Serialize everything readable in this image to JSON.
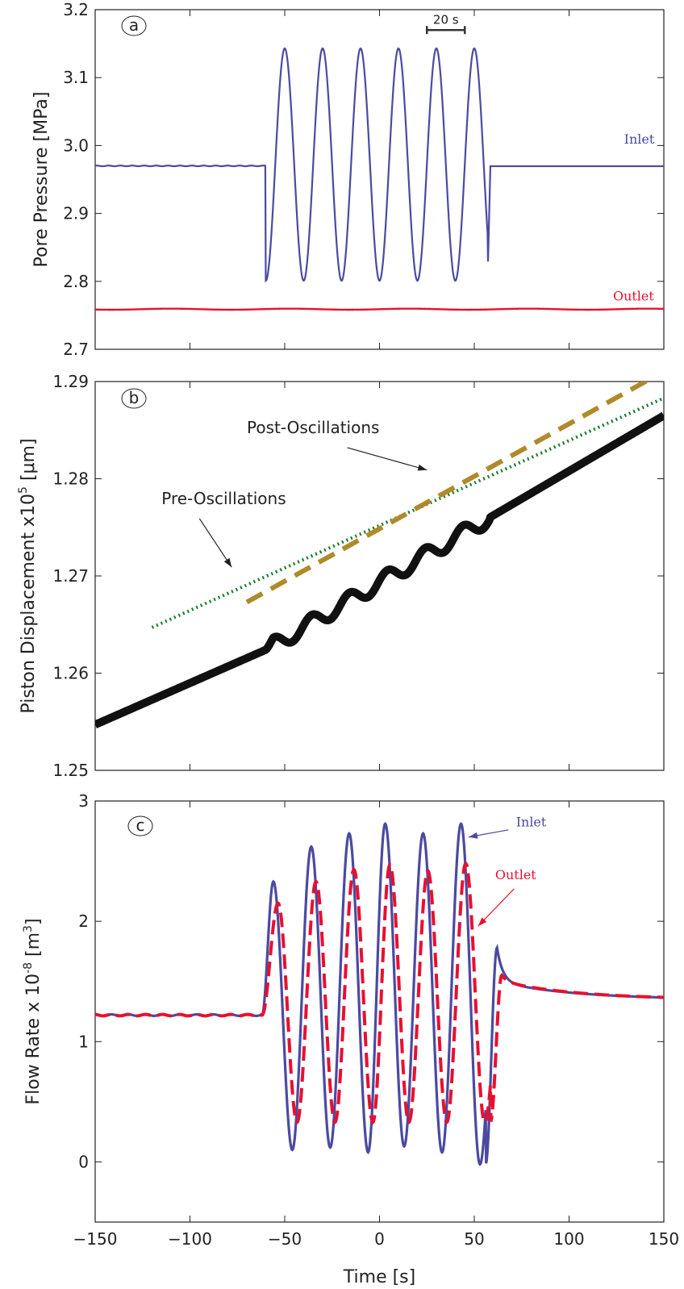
{
  "chart_data": [
    {
      "type": "line",
      "panel_label": "a",
      "ylabel": "Pore  Pressure [MPa]",
      "xlim": [
        -150,
        150
      ],
      "ylim": [
        2.7,
        3.2
      ],
      "xticks": [
        -150,
        -100,
        -50,
        0,
        50,
        100,
        150
      ],
      "yticks": [
        2.7,
        2.8,
        2.9,
        3.0,
        3.1,
        3.2
      ],
      "ytick_labels": [
        "2.7",
        "2.8",
        "2.9",
        "3.0",
        "3.1",
        "3.2"
      ],
      "grid": false,
      "oscillation": {
        "start": -60,
        "end": 60,
        "period": 20
      },
      "series": [
        {
          "name": "Inlet",
          "color": "#4b4aa0",
          "base": 2.97,
          "amplitude": 0.171,
          "center": 2.972
        },
        {
          "name": "Outlet",
          "color": "#e8102f",
          "base": 2.759,
          "amplitude": 0.0008,
          "center": 2.759
        }
      ],
      "scale_bar": {
        "label": "20 s",
        "x0": 25,
        "x1": 45,
        "y": 3.17
      }
    },
    {
      "type": "line",
      "panel_label": "b",
      "ylabel": "Piston Displacement x10",
      "ylabel_sup": "5",
      "ylabel_unit": " [μm]",
      "xlim": [
        -150,
        150
      ],
      "ylim": [
        1.25,
        1.29
      ],
      "xticks": [
        -150,
        -100,
        -50,
        0,
        50,
        100,
        150
      ],
      "yticks": [
        1.25,
        1.26,
        1.27,
        1.28,
        1.29
      ],
      "ytick_labels": [
        "1.25",
        "1.26",
        "1.27",
        "1.28",
        "1.29"
      ],
      "grid": false,
      "series": [
        {
          "id": "displacement",
          "color": "#111111",
          "style": "solid",
          "pre": {
            "x0": -150,
            "y0": 1.2547,
            "x1": -60,
            "y1": 1.2624
          },
          "osc": {
            "x0": -60,
            "y0": 1.2624,
            "x1": 58,
            "y1": 1.276,
            "amplitude": 0.0008,
            "period": 20
          },
          "post": {
            "x0": 58,
            "y0": 1.276,
            "x1": 150,
            "y1": 1.2865
          }
        },
        {
          "id": "pre-fit",
          "color": "#1a7a2e",
          "style": "dotted",
          "x0": -120,
          "y0": 1.2647,
          "x1": 150,
          "y1": 1.2883
        },
        {
          "id": "post-fit",
          "color": "#b08a2a",
          "style": "dashed",
          "x0": -70,
          "y0": 1.2673,
          "x1": 145,
          "y1": 1.2905
        }
      ],
      "annotations": [
        {
          "text": "Pre-Oscillations",
          "text_x": -115,
          "text_y": 1.2774,
          "arrow_x0": -95,
          "arrow_y0": 1.2759,
          "arrow_x1": -78,
          "arrow_y1": 1.2709
        },
        {
          "text": "Post-Oscillations",
          "text_x": -70,
          "text_y": 1.2847,
          "arrow_x0": -17,
          "arrow_y0": 1.2832,
          "arrow_x1": 25,
          "arrow_y1": 1.2809
        }
      ]
    },
    {
      "type": "line",
      "panel_label": "c",
      "xlabel": "Time [s]",
      "ylabel": "Flow Rate  x 10",
      "ylabel_sup": "-8",
      "ylabel_unit": " [m",
      "ylabel_unit_sup": "3",
      "ylabel_unit_end": "]",
      "xlim": [
        -150,
        150
      ],
      "ylim": [
        -0.5,
        3
      ],
      "xticks": [
        -150,
        -100,
        -50,
        0,
        50,
        100,
        150
      ],
      "xtick_labels": [
        "−150",
        "−100",
        "−50",
        "0",
        "50",
        "100",
        "150"
      ],
      "yticks": [
        0,
        1,
        2,
        3
      ],
      "ytick_labels": [
        "0",
        "1",
        "2",
        "3"
      ],
      "grid": false,
      "series": [
        {
          "name": "Inlet",
          "color": "#4b4aa0",
          "style": "solid",
          "peaks": [
            2.33,
            2.62,
            2.73,
            2.81,
            2.73,
            2.81
          ],
          "troughs": [
            0.1,
            0.12,
            0.08,
            0.13,
            0.08,
            -0.02
          ]
        },
        {
          "name": "Outlet",
          "color": "#e8102f",
          "style": "dashed",
          "peaks": [
            2.15,
            2.33,
            2.43,
            2.47,
            2.42,
            2.48
          ],
          "troughs": [
            0.33,
            0.33,
            0.33,
            0.33,
            0.33,
            0.33
          ]
        }
      ],
      "annotations": [
        {
          "text": "Inlet",
          "text_x": 72,
          "text_y": 2.79,
          "arrow_x0": 68,
          "arrow_y0": 2.76,
          "arrow_x1": 47,
          "arrow_y1": 2.7
        },
        {
          "text": "Outlet",
          "text_x": 61,
          "text_y": 2.35,
          "arrow_x0": 71,
          "arrow_y0": 2.27,
          "arrow_x1": 52,
          "arrow_y1": 1.96
        }
      ]
    }
  ],
  "labels": {
    "inlet_a": "Inlet",
    "outlet_a": "Outlet"
  }
}
